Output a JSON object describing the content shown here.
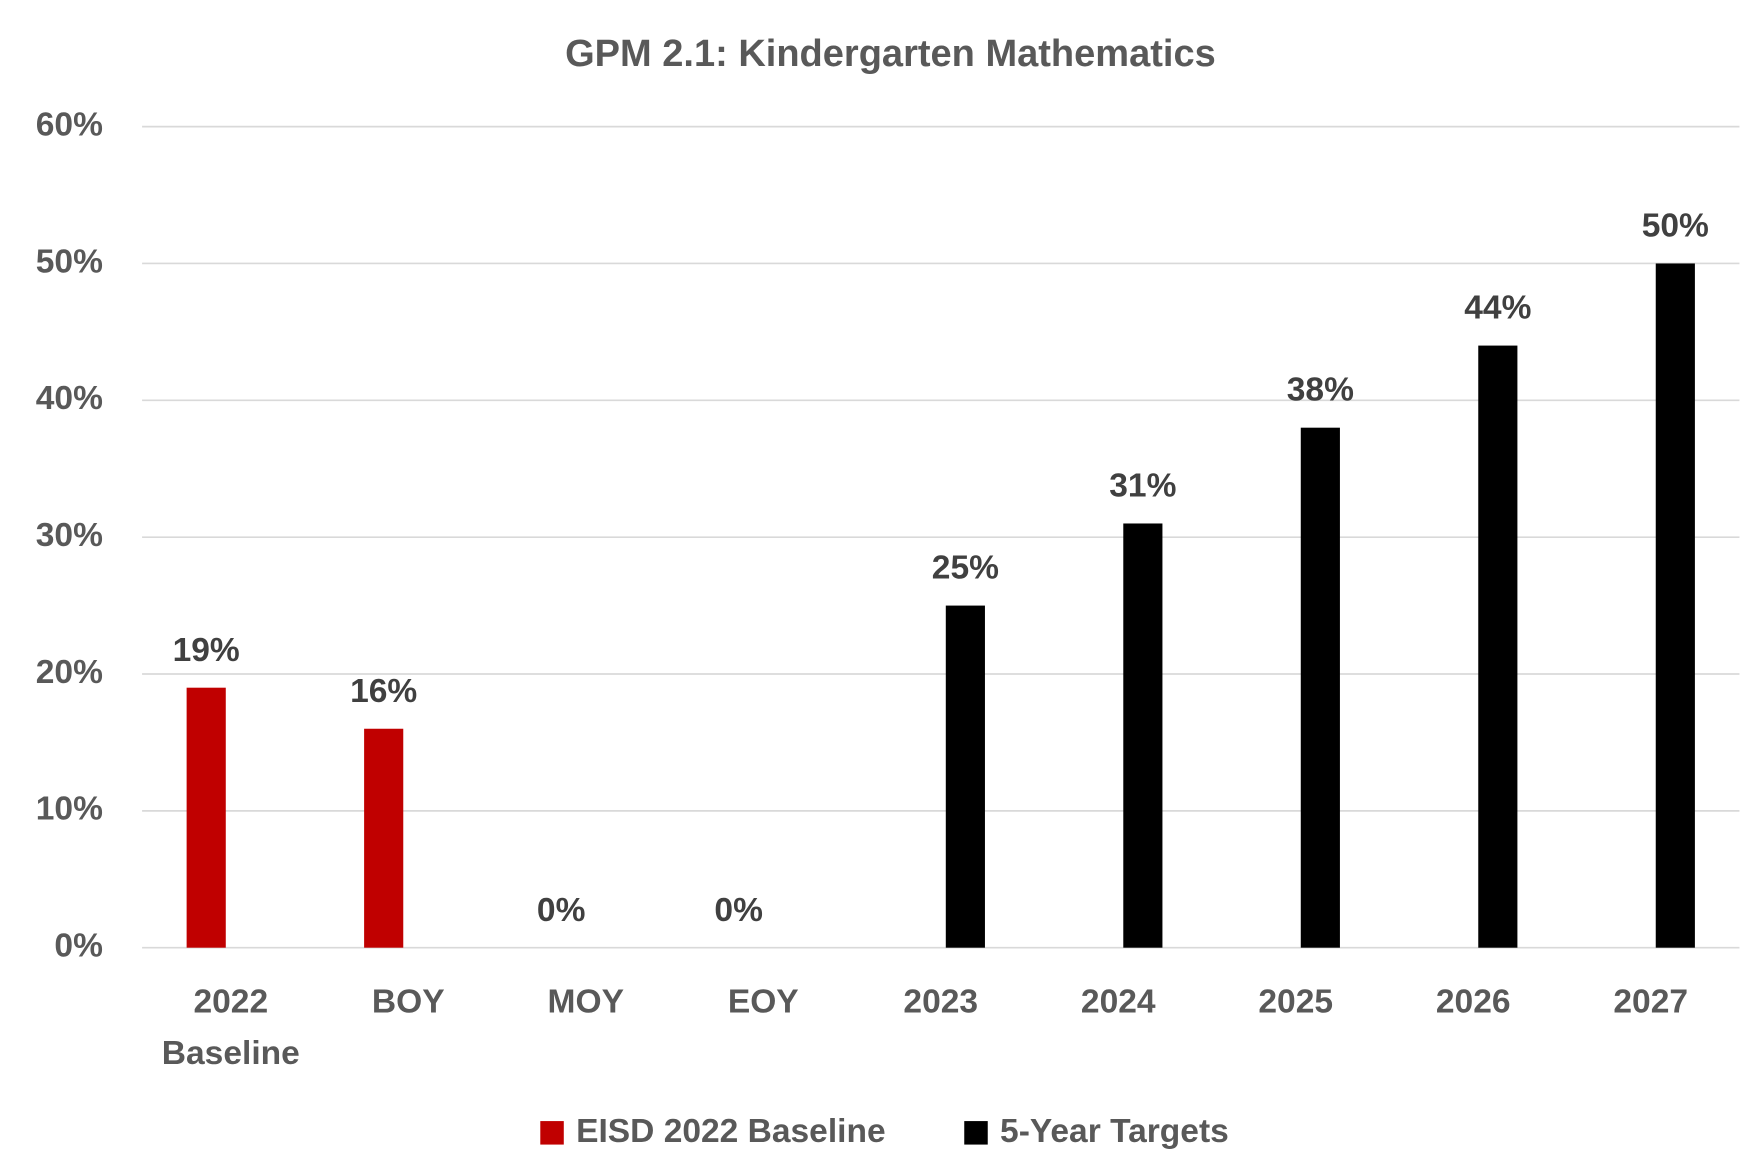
{
  "chart_data": {
    "type": "bar",
    "title": "GPM 2.1: Kindergarten Mathematics",
    "categories": [
      "2022 Baseline",
      "BOY",
      "MOY",
      "EOY",
      "2023",
      "2024",
      "2025",
      "2026",
      "2027"
    ],
    "series": [
      {
        "name": "EISD 2022 Baseline",
        "color": "#c00000",
        "values": [
          19,
          16,
          0,
          0,
          null,
          null,
          null,
          null,
          null
        ],
        "value_labels": [
          "19%",
          "16%",
          "0%",
          "0%",
          null,
          null,
          null,
          null,
          null
        ]
      },
      {
        "name": "5-Year Targets",
        "color": "#000000",
        "values": [
          null,
          null,
          null,
          null,
          25,
          31,
          38,
          44,
          50
        ],
        "value_labels": [
          null,
          null,
          null,
          null,
          "25%",
          "31%",
          "38%",
          "44%",
          "50%"
        ]
      }
    ],
    "ylim": [
      0,
      60
    ],
    "yticks": [
      {
        "value": 0,
        "label": "0%"
      },
      {
        "value": 10,
        "label": "10%"
      },
      {
        "value": 20,
        "label": "20%"
      },
      {
        "value": 30,
        "label": "30%"
      },
      {
        "value": 40,
        "label": "40%"
      },
      {
        "value": 50,
        "label": "50%"
      },
      {
        "value": 60,
        "label": "60%"
      }
    ],
    "grid": true,
    "legend": "bottom"
  }
}
